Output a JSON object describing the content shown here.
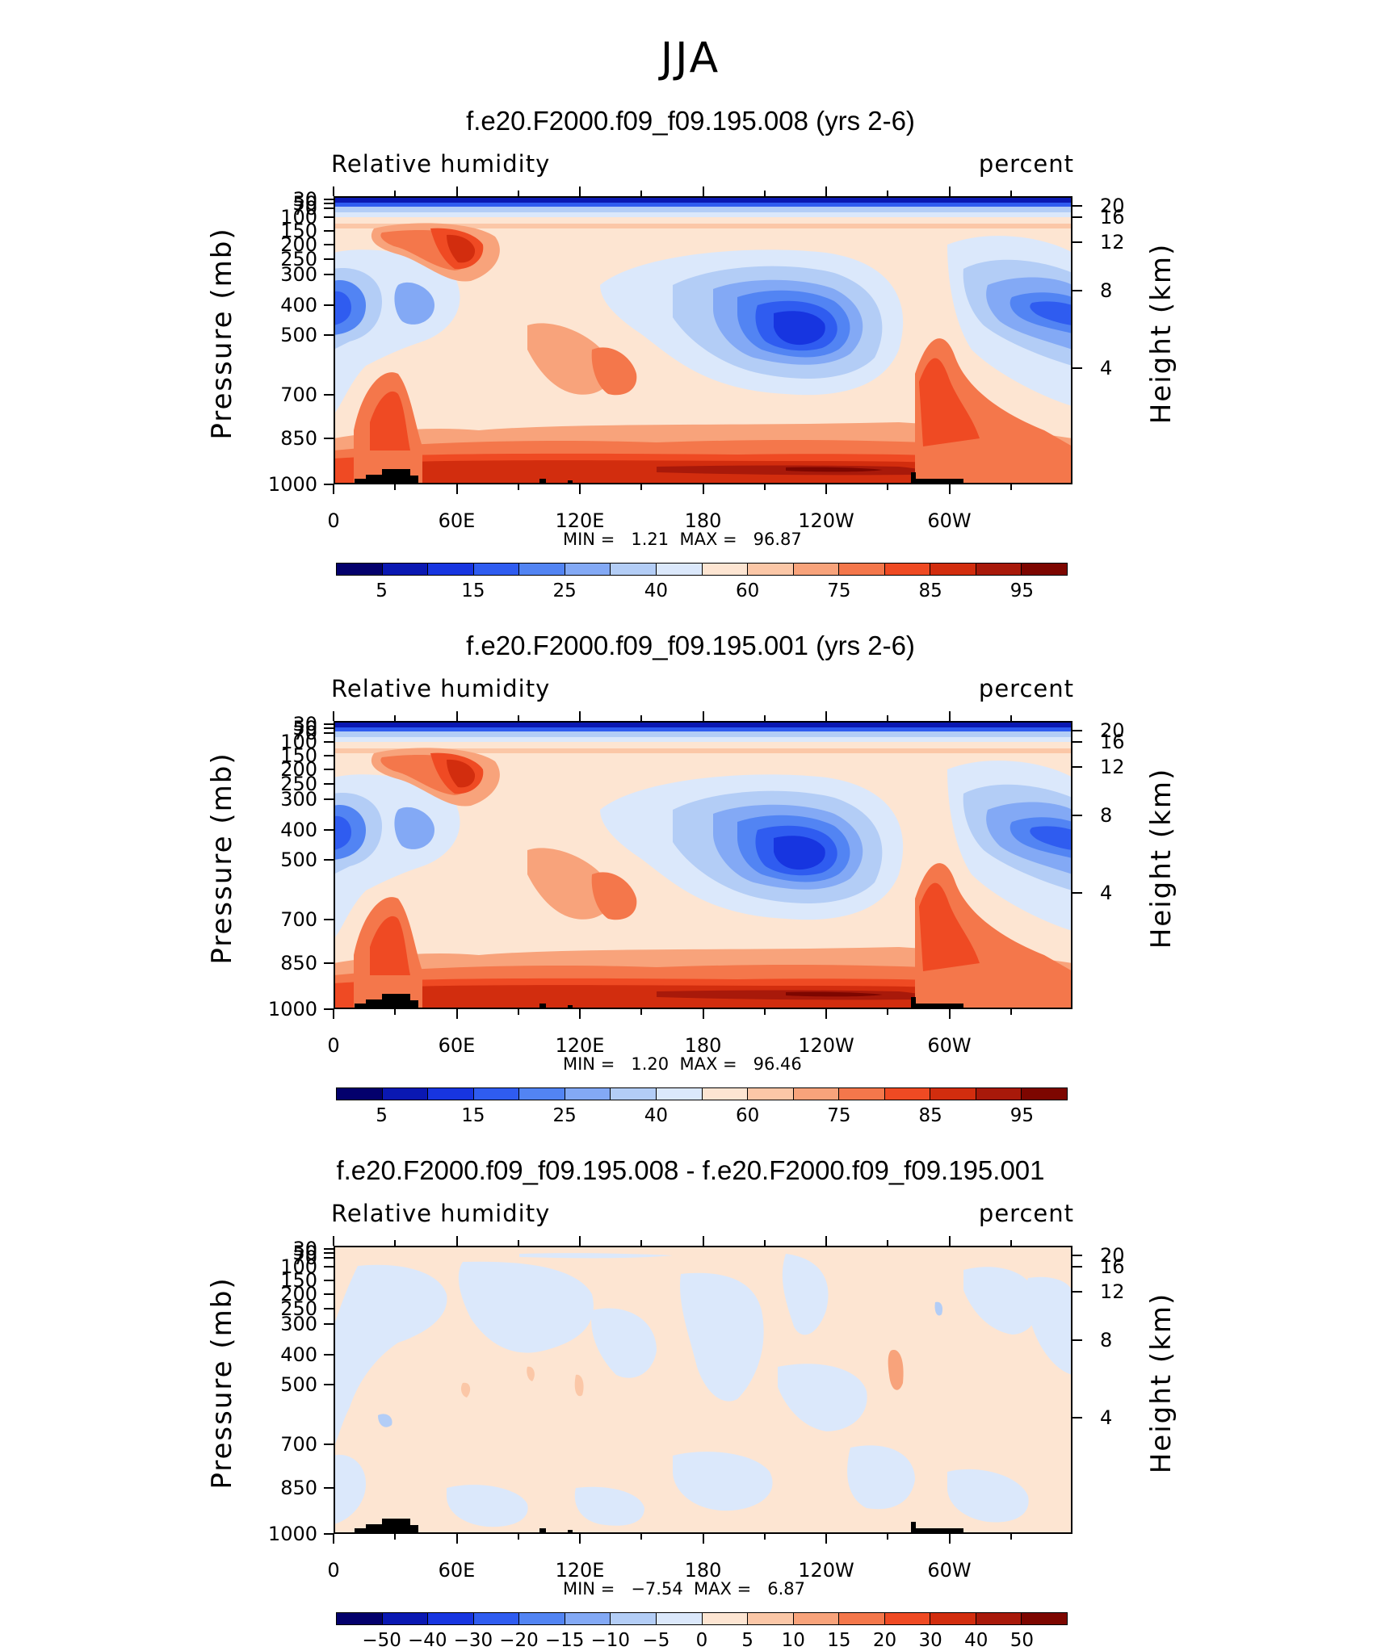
{
  "figure": {
    "season": "JJA",
    "panels": [
      {
        "title": "f.e20.F2000.f09_f09.195.008 (yrs 2-6)",
        "left_label": "Relative humidity",
        "right_label": "percent",
        "min_label": "MIN =",
        "min_value": "1.21",
        "max_label": "MAX =",
        "max_value": "96.87",
        "kind": "abs"
      },
      {
        "title": "f.e20.F2000.f09_f09.195.001 (yrs 2-6)",
        "left_label": "Relative humidity",
        "right_label": "percent",
        "min_label": "MIN =",
        "min_value": "1.20",
        "max_label": "MAX =",
        "max_value": "96.46",
        "kind": "abs"
      },
      {
        "title": "f.e20.F2000.f09_f09.195.008 - f.e20.F2000.f09_f09.195.001",
        "left_label": "Relative humidity",
        "right_label": "percent",
        "min_label": "MIN =",
        "min_value": "−7.54",
        "max_label": "MAX =",
        "max_value": "6.87",
        "kind": "diff"
      }
    ],
    "y_axis_left_title": "Pressure (mb)",
    "y_axis_right_title": "Height (km)",
    "pressure_ticks": [
      "30",
      "50",
      "70",
      "100",
      "150",
      "200",
      "250",
      "300",
      "400",
      "500",
      "700",
      "850",
      "1000"
    ],
    "height_ticks": [
      "20",
      "16",
      "12",
      "8",
      "4"
    ],
    "x_ticks": [
      "0",
      "60E",
      "120E",
      "180",
      "120W",
      "60W"
    ],
    "abs_colorbar_labels": [
      "5",
      "15",
      "25",
      "40",
      "60",
      "75",
      "85",
      "95"
    ],
    "diff_colorbar_labels": [
      "−50",
      "−40",
      "−30",
      "−20",
      "−15",
      "−10",
      "−5",
      "0",
      "5",
      "10",
      "15",
      "20",
      "30",
      "40",
      "50"
    ],
    "colors": [
      "#03006c",
      "#0a18b2",
      "#1735e0",
      "#2f5cf0",
      "#5284f3",
      "#83a9f5",
      "#b3cdf6",
      "#dbe8fb",
      "#fde5d2",
      "#fbc7a7",
      "#f8a37b",
      "#f4774b",
      "#ef4a23",
      "#d22d0e",
      "#a8190a",
      "#7d0600"
    ]
  },
  "chart_data": [
    {
      "type": "heatmap",
      "title": "f.e20.F2000.f09_f09.195.008 (yrs 2-6)",
      "variable": "Relative humidity",
      "units": "percent",
      "x": [
        0,
        30,
        60,
        90,
        120,
        150,
        180,
        210,
        240,
        270,
        300,
        330,
        360
      ],
      "x_ticks": [
        "0",
        "60E",
        "120E",
        "180",
        "120W",
        "60W"
      ],
      "y_pressure_mb": [
        30,
        50,
        70,
        100,
        150,
        200,
        250,
        300,
        400,
        500,
        700,
        850,
        1000
      ],
      "y_height_km": [
        20,
        16,
        12,
        8,
        4
      ],
      "xlabel": "",
      "ylabel": "Pressure (mb)",
      "ylabel_right": "Height (km)",
      "levels": [
        5,
        10,
        15,
        20,
        25,
        30,
        40,
        50,
        60,
        70,
        75,
        80,
        85,
        90,
        95
      ],
      "min": 1.21,
      "max": 96.87
    },
    {
      "type": "heatmap",
      "title": "f.e20.F2000.f09_f09.195.001 (yrs 2-6)",
      "variable": "Relative humidity",
      "units": "percent",
      "x": [
        0,
        30,
        60,
        90,
        120,
        150,
        180,
        210,
        240,
        270,
        300,
        330,
        360
      ],
      "x_ticks": [
        "0",
        "60E",
        "120E",
        "180",
        "120W",
        "60W"
      ],
      "y_pressure_mb": [
        30,
        50,
        70,
        100,
        150,
        200,
        250,
        300,
        400,
        500,
        700,
        850,
        1000
      ],
      "y_height_km": [
        20,
        16,
        12,
        8,
        4
      ],
      "xlabel": "",
      "ylabel": "Pressure (mb)",
      "ylabel_right": "Height (km)",
      "levels": [
        5,
        10,
        15,
        20,
        25,
        30,
        40,
        50,
        60,
        70,
        75,
        80,
        85,
        90,
        95
      ],
      "min": 1.2,
      "max": 96.46
    },
    {
      "type": "heatmap",
      "title": "f.e20.F2000.f09_f09.195.008 - f.e20.F2000.f09_f09.195.001",
      "variable": "Relative humidity",
      "units": "percent",
      "x": [
        0,
        30,
        60,
        90,
        120,
        150,
        180,
        210,
        240,
        270,
        300,
        330,
        360
      ],
      "x_ticks": [
        "0",
        "60E",
        "120E",
        "180",
        "120W",
        "60W"
      ],
      "y_pressure_mb": [
        30,
        50,
        70,
        100,
        150,
        200,
        250,
        300,
        400,
        500,
        700,
        850,
        1000
      ],
      "y_height_km": [
        20,
        16,
        12,
        8,
        4
      ],
      "xlabel": "",
      "ylabel": "Pressure (mb)",
      "ylabel_right": "Height (km)",
      "levels": [
        -50,
        -40,
        -30,
        -20,
        -15,
        -10,
        -5,
        0,
        5,
        10,
        15,
        20,
        30,
        40,
        50
      ],
      "min": -7.54,
      "max": 6.87
    }
  ]
}
